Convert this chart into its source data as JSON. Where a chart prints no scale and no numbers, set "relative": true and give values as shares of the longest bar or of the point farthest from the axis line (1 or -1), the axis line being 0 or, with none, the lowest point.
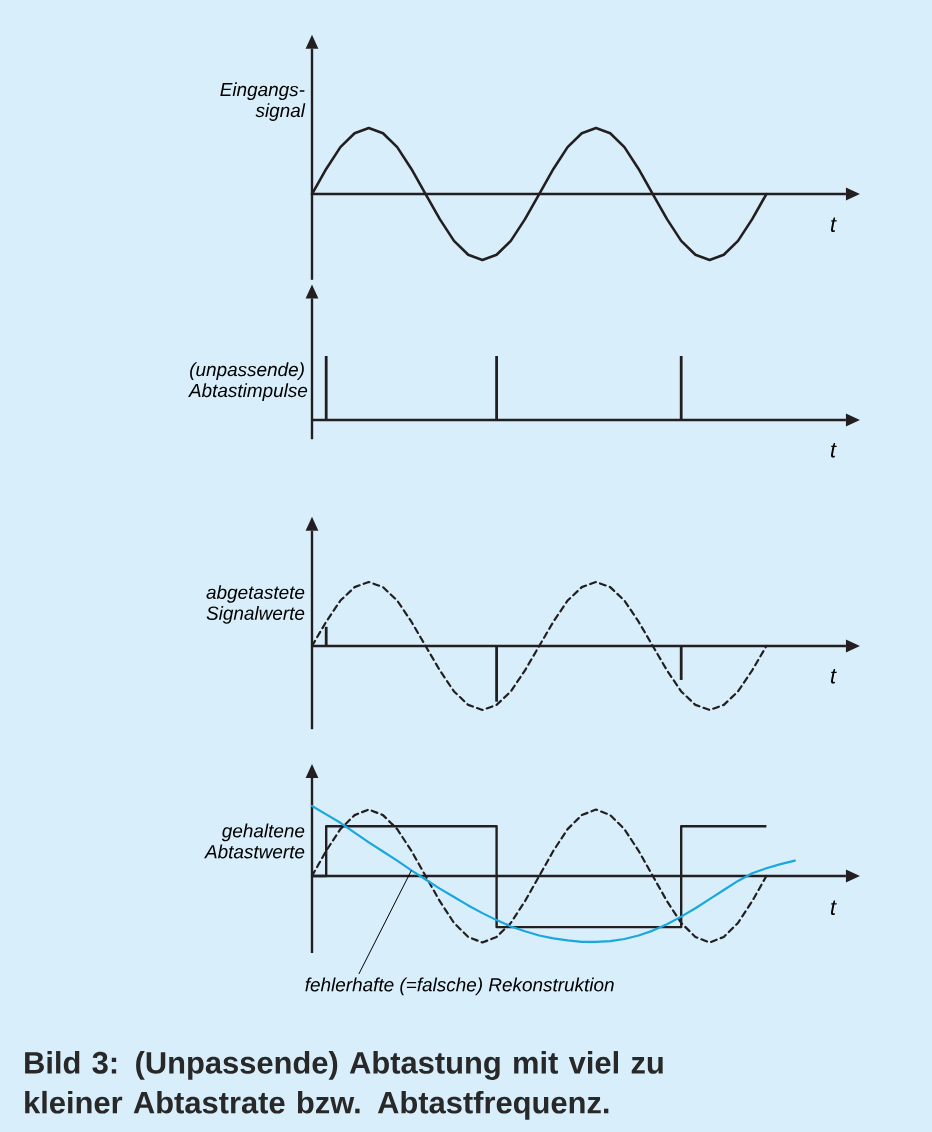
{
  "chart_data": [
    {
      "type": "line",
      "ylabel": "Eingangs-signal",
      "xlabel": "t",
      "relative": true,
      "categories": [
        null,
        null,
        null,
        null,
        null,
        null,
        null,
        null,
        null,
        null,
        null,
        null,
        null,
        null,
        null,
        null,
        null,
        null,
        null,
        null,
        null,
        null,
        null,
        null,
        null,
        null,
        null,
        null,
        null,
        null,
        null,
        null,
        null,
        null,
        null,
        null,
        null
      ],
      "series": [
        {
          "color": "#231f20",
          "values": [
            0,
            0.38,
            0.71,
            0.92,
            1,
            0.92,
            0.71,
            0.38,
            0,
            -0.38,
            -0.71,
            -0.92,
            -1,
            -0.92,
            -0.71,
            -0.38,
            0,
            0.38,
            0.71,
            0.92,
            1,
            0.92,
            0.71,
            0.38,
            0,
            -0.38,
            -0.71,
            -0.92,
            -1,
            -0.92,
            -0.71,
            -0.38,
            0,
            null,
            null,
            null,
            null
          ]
        }
      ]
    },
    {
      "type": "bar",
      "ylabel": "(unpassende) Abtastimpulse",
      "xlabel": "t",
      "relative": true,
      "categories": [
        null,
        null,
        null,
        null,
        null,
        null,
        null,
        null,
        null,
        null,
        null,
        null,
        null,
        null,
        null,
        null,
        null,
        null,
        null,
        null,
        null,
        null,
        null,
        null,
        null,
        null,
        null,
        null,
        null,
        null,
        null,
        null,
        null,
        null,
        null,
        null,
        null
      ],
      "series": [
        {
          "color": "#231f20",
          "values": [
            null,
            1,
            null,
            null,
            null,
            null,
            null,
            null,
            null,
            null,
            null,
            null,
            null,
            1,
            null,
            null,
            null,
            null,
            null,
            null,
            null,
            null,
            null,
            null,
            null,
            null,
            1,
            null,
            null,
            null,
            null,
            null,
            null,
            null,
            null,
            null,
            null
          ]
        }
      ]
    },
    {
      "type": "line",
      "ylabel": "abgetastete Signalwerte",
      "xlabel": "t",
      "relative": true,
      "categories": [
        null,
        null,
        null,
        null,
        null,
        null,
        null,
        null,
        null,
        null,
        null,
        null,
        null,
        null,
        null,
        null,
        null,
        null,
        null,
        null,
        null,
        null,
        null,
        null,
        null,
        null,
        null,
        null,
        null,
        null,
        null,
        null,
        null,
        null,
        null,
        null,
        null
      ],
      "series": [
        {
          "color": "#231f20",
          "line_style": "dashed",
          "values": [
            0,
            0.38,
            0.71,
            0.92,
            1,
            0.92,
            0.71,
            0.38,
            0,
            -0.38,
            -0.71,
            -0.92,
            -1,
            -0.92,
            -0.71,
            -0.38,
            0,
            0.38,
            0.71,
            0.92,
            1,
            0.92,
            0.71,
            0.38,
            0,
            -0.38,
            -0.71,
            -0.92,
            -1,
            -0.92,
            -0.71,
            -0.38,
            0,
            null,
            null,
            null,
            null
          ]
        },
        {
          "type": "bar",
          "color": "#231f20",
          "values": [
            null,
            0.3,
            null,
            null,
            null,
            null,
            null,
            null,
            null,
            null,
            null,
            null,
            null,
            -0.87,
            null,
            null,
            null,
            null,
            null,
            null,
            null,
            null,
            null,
            null,
            null,
            null,
            -0.53,
            null,
            null,
            null,
            null,
            null,
            null,
            null,
            null,
            null,
            null
          ]
        }
      ]
    },
    {
      "type": "line",
      "ylabel": "gehaltene Abtastwerte",
      "xlabel": "t",
      "relative": true,
      "categories": [
        null,
        null,
        null,
        null,
        null,
        null,
        null,
        null,
        null,
        null,
        null,
        null,
        null,
        null,
        null,
        null,
        null,
        null,
        null,
        null,
        null,
        null,
        null,
        null,
        null,
        null,
        null,
        null,
        null,
        null,
        null,
        null,
        null,
        null,
        null,
        null,
        null
      ],
      "annotations": [
        "fehlerhafte (=falsche) Rekonstruktion",
        "Bild 3: (Unpassende) Abtastung mit viel zu kleiner Abtastrate bzw. Abtastfrequenz."
      ],
      "series": [
        {
          "color": "#231f20",
          "line_style": "dashed",
          "values": [
            0,
            0.36,
            0.67,
            0.87,
            0.95,
            0.87,
            0.67,
            0.36,
            0,
            -0.36,
            -0.67,
            -0.87,
            -0.95,
            -0.87,
            -0.67,
            -0.36,
            0,
            0.36,
            0.67,
            0.87,
            0.95,
            0.87,
            0.67,
            0.36,
            0,
            -0.36,
            -0.67,
            -0.87,
            -0.95,
            -0.87,
            -0.67,
            -0.36,
            0,
            null,
            null,
            null,
            null
          ]
        },
        {
          "type": "step",
          "color": "#231f20",
          "values": [
            0,
            0.71,
            0.71,
            0.71,
            0.71,
            0.71,
            0.71,
            0.71,
            0.71,
            0.71,
            0.71,
            0.71,
            0.71,
            -0.73,
            -0.73,
            -0.73,
            -0.73,
            -0.73,
            -0.73,
            -0.73,
            -0.73,
            -0.73,
            -0.73,
            -0.73,
            -0.73,
            -0.73,
            0.71,
            0.71,
            0.71,
            0.71,
            0.71,
            0.71,
            0.71,
            null,
            null,
            null,
            null
          ]
        },
        {
          "color": "#1aa7e0",
          "values": [
            1,
            0.88,
            0.76,
            0.62,
            0.48,
            0.35,
            0.22,
            0.08,
            -0.05,
            -0.18,
            -0.3,
            -0.42,
            -0.53,
            -0.63,
            -0.72,
            -0.79,
            -0.85,
            -0.89,
            -0.92,
            -0.94,
            -0.94,
            -0.93,
            -0.9,
            -0.85,
            -0.78,
            -0.69,
            -0.58,
            -0.46,
            -0.33,
            -0.2,
            -0.07,
            0.04,
            0.11,
            0.17,
            0.22,
            null,
            null
          ]
        }
      ]
    }
  ]
}
